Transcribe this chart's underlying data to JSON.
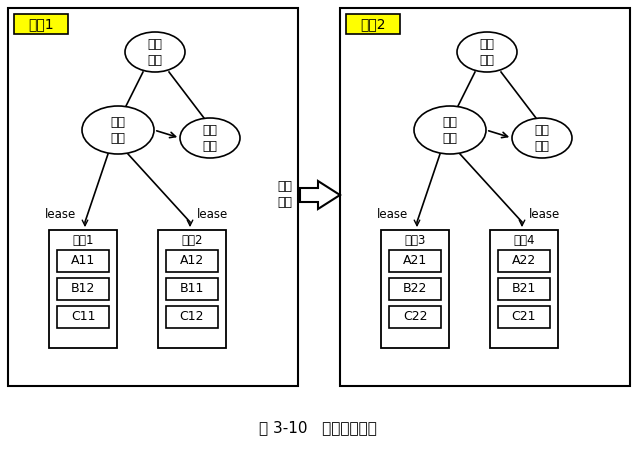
{
  "title": "图 3-10   集群整体切换",
  "bg_color": "#ffffff",
  "room1_label": "机房1",
  "room2_label": "机房2",
  "label_bg": "#ffff00",
  "node_auto1": "自动\n切换",
  "node_master1": "总控\n节点",
  "node_backup1": "备份\n节点",
  "node_auto2": "自动\n切换",
  "node_master2": "总控\n节点",
  "node_backup2": "备份\n节点",
  "lease_label": "lease",
  "node1_label": "节点1",
  "node2_label": "节点2",
  "node3_label": "节点3",
  "node4_label": "节点4",
  "node1_data": [
    "A11",
    "B12",
    "C11"
  ],
  "node2_data": [
    "A12",
    "B11",
    "C12"
  ],
  "node3_data": [
    "A21",
    "B22",
    "C22"
  ],
  "node4_data": [
    "A22",
    "B21",
    "C21"
  ],
  "sync_label": "数据\n同步",
  "font_size_node": 9,
  "font_size_label": 8.5,
  "font_size_data": 9,
  "font_size_title": 11,
  "font_size_room": 10
}
